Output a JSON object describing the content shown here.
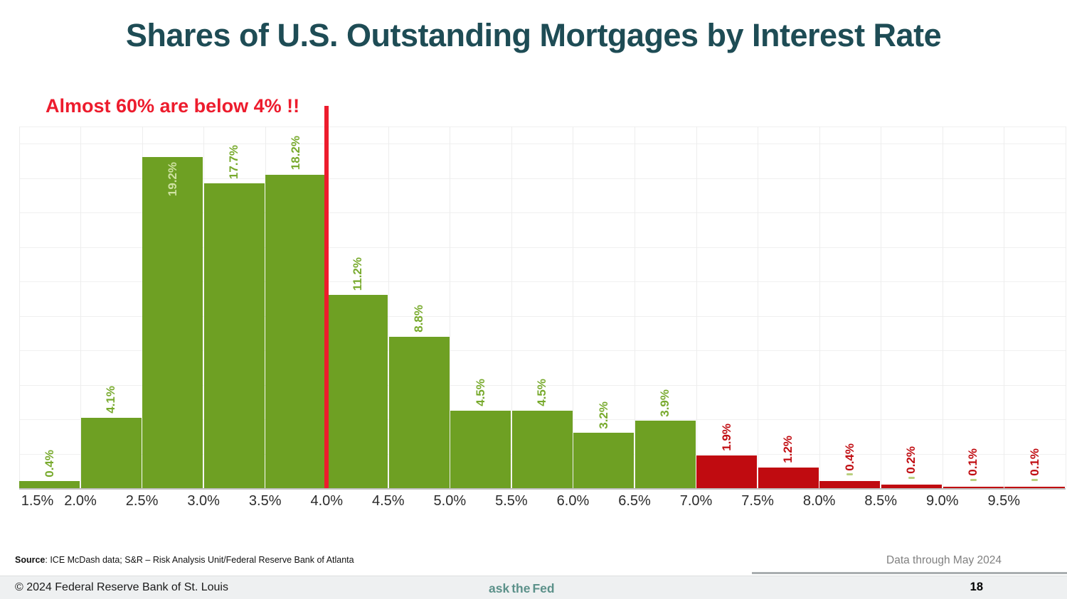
{
  "header": {
    "title": "Shares of U.S. Outstanding Mortgages by Interest Rate"
  },
  "annotation": {
    "text": "Almost 60% are below 4% !!",
    "color": "#ed1c2d"
  },
  "chart_data": {
    "type": "bar",
    "title": "Shares of U.S. Outstanding Mortgages by Interest Rate",
    "categories": [
      "1.5%",
      "2.0%",
      "2.5%",
      "3.0%",
      "3.5%",
      "4.0%",
      "4.5%",
      "5.0%",
      "5.5%",
      "6.0%",
      "6.5%",
      "7.0%",
      "7.5%",
      "8.0%",
      "8.5%",
      "9.0%",
      "9.5%"
    ],
    "values": [
      0.4,
      4.1,
      19.2,
      17.7,
      18.2,
      11.2,
      8.8,
      4.5,
      4.5,
      3.2,
      3.9,
      1.9,
      1.2,
      0.4,
      0.2,
      0.1,
      0.1
    ],
    "value_labels": [
      "0.4%",
      "4.1%",
      "19.2%",
      "17.7%",
      "18.2%",
      "11.2%",
      "8.8%",
      "4.5%",
      "4.5%",
      "3.2%",
      "3.9%",
      "1.9%",
      "1.2%",
      "0.4%",
      "0.2%",
      "0.1%",
      "0.1%"
    ],
    "bar_color_keys": [
      "green",
      "green",
      "green",
      "green",
      "green",
      "green",
      "green",
      "green",
      "green",
      "green",
      "green",
      "red",
      "red",
      "red",
      "red",
      "red",
      "red"
    ],
    "label_inside_index": 2,
    "dash_indices": [
      13,
      14,
      15,
      16
    ],
    "x_tick_labels": [
      "1.5%",
      "2.0%",
      "2.5%",
      "3.0%",
      "3.5%",
      "4.0%",
      "4.5%",
      "5.0%",
      "5.5%",
      "6.0%",
      "6.5%",
      "7.0%",
      "7.5%",
      "8.0%",
      "8.5%",
      "9.0%",
      "9.5%"
    ],
    "xlabel": "",
    "ylabel": "",
    "ylim": [
      0,
      21
    ],
    "gridline_step_pct": 2,
    "grid": "on",
    "legend": "none",
    "reference_line": {
      "x_at": "4.0%",
      "color": "#ed1c2d",
      "note": "Almost 60% are below 4% !!"
    },
    "colors": {
      "green_bar": "#6ea023",
      "green_label": "#78aa2d",
      "red_bar": "#c00b10",
      "red_label": "#c00b10",
      "inside_label": "#cfe2a2",
      "dash": "#b9cf7e"
    }
  },
  "source": {
    "prefix": "Source",
    "text": ": ICE McDash data; S&R – Risk Analysis Unit/Federal Reserve Bank of Atlanta",
    "data_through": "Data through May 2024"
  },
  "footer": {
    "copyright": "© 2024 Federal Reserve Bank of St. Louis",
    "logo": {
      "ask": "ask",
      "the": "the",
      "fed": "Fed"
    },
    "page": "18"
  }
}
